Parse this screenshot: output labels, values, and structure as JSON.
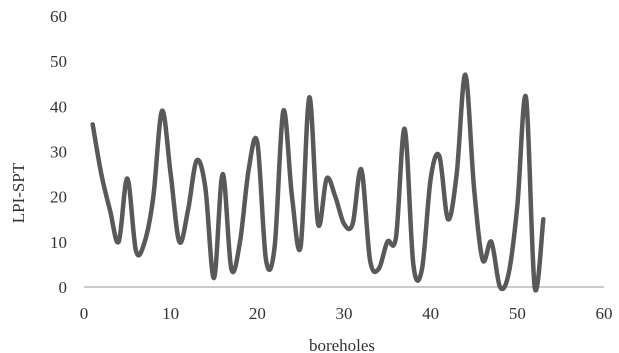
{
  "chart_data": {
    "type": "line",
    "xlabel": "boreholes",
    "ylabel": "LPI-SPT",
    "xlim": [
      0,
      60
    ],
    "ylim": [
      0,
      60
    ],
    "x_ticks": [
      0,
      10,
      20,
      30,
      40,
      50,
      60
    ],
    "y_ticks": [
      0,
      10,
      20,
      30,
      40,
      50,
      60
    ],
    "x_tick_labels": [
      "0",
      "10",
      "20",
      "30",
      "40",
      "50",
      "60"
    ],
    "y_tick_labels": [
      "0",
      "10",
      "20",
      "30",
      "40",
      "50",
      "60"
    ],
    "grid": false,
    "legend": "none",
    "smooth": true,
    "series": [
      {
        "color": "#595959",
        "x": [
          1,
          2,
          3,
          4,
          5,
          6,
          7,
          8,
          9,
          10,
          11,
          12,
          13,
          14,
          15,
          16,
          17,
          18,
          19,
          20,
          21,
          22,
          23,
          24,
          25,
          26,
          27,
          28,
          29,
          30,
          31,
          32,
          33,
          34,
          35,
          36,
          37,
          38,
          39,
          40,
          41,
          42,
          43,
          44,
          45,
          46,
          47,
          48,
          49,
          50,
          51,
          52,
          53
        ],
        "y": [
          36,
          25,
          17,
          10,
          24,
          8,
          10,
          20,
          39,
          25,
          10,
          17,
          28,
          22,
          2,
          25,
          4,
          10,
          26,
          32,
          6,
          9,
          39,
          20,
          9,
          42,
          14,
          24,
          20,
          14,
          14,
          26,
          6,
          4,
          10,
          11,
          35,
          5,
          4,
          24,
          29,
          15,
          25,
          47,
          22,
          6,
          10,
          0,
          3,
          18,
          42,
          0,
          15
        ]
      }
    ]
  }
}
